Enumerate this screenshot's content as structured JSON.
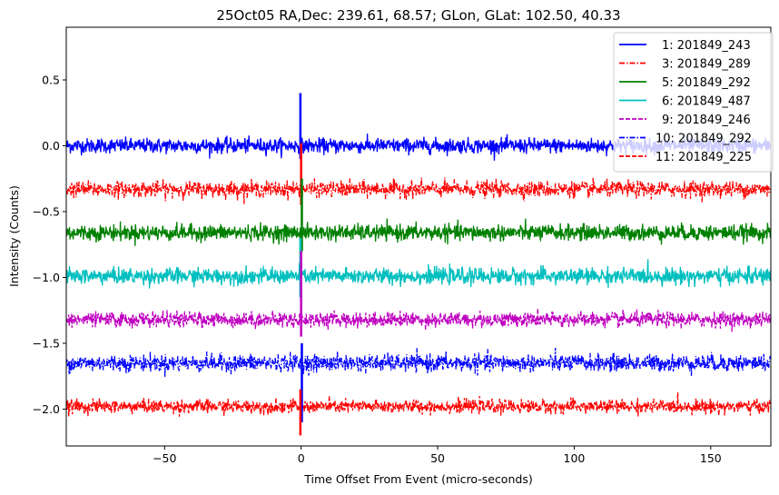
{
  "chart_data": {
    "type": "line",
    "title": "25Oct05 RA,Dec:  239.61,  68.57; GLon, GLat:  102.50,  40.33",
    "xlabel": "Time Offset From Event (micro-seconds)",
    "ylabel": "Intensity (Counts)",
    "xlim": [
      -86,
      172
    ],
    "ylim": [
      -2.28,
      0.9
    ],
    "xticks": [
      -50,
      0,
      50,
      100,
      150
    ],
    "xtick_labels": [
      "−50",
      "0",
      "50",
      "100",
      "150"
    ],
    "yticks": [
      0.5,
      0.0,
      -0.5,
      -1.0,
      -1.5,
      -2.0
    ],
    "ytick_labels": [
      "0.5",
      "0.0",
      "−0.5",
      "−1.0",
      "−1.5",
      "−2.0"
    ],
    "grid": false,
    "legend_position": "top-right",
    "series": [
      {
        "name": "1: 201849_243",
        "color": "#0000ff",
        "linestyle": "solid",
        "offset": 0.0,
        "noise_std": 0.028,
        "event_spike": [
          -0.1,
          0.4
        ]
      },
      {
        "name": "3: 201849_289",
        "color": "#ff0000",
        "linestyle": "dashdot",
        "offset": -0.33,
        "noise_std": 0.03,
        "event_spike": [
          -0.45,
          0.02
        ]
      },
      {
        "name": "5: 201849_292",
        "color": "#008000",
        "linestyle": "solid",
        "offset": -0.66,
        "noise_std": 0.03,
        "event_spike": [
          -0.8,
          -0.25
        ]
      },
      {
        "name": "6: 201849_487",
        "color": "#00bfbf",
        "linestyle": "solid",
        "offset": -0.99,
        "noise_std": 0.03,
        "event_spike": [
          -1.15,
          -0.7
        ]
      },
      {
        "name": "9: 201849_246",
        "color": "#bf00bf",
        "linestyle": "dashed",
        "offset": -1.32,
        "noise_std": 0.028,
        "event_spike": [
          -1.45,
          -0.8
        ]
      },
      {
        "name": "10: 201849_292",
        "color": "#0000ff",
        "linestyle": "dashdot",
        "offset": -1.65,
        "noise_std": 0.032,
        "event_spike": [
          -2.1,
          -1.5
        ]
      },
      {
        "name": "11: 201849_225",
        "color": "#ff0000",
        "linestyle": "dashed",
        "offset": -1.98,
        "noise_std": 0.025,
        "event_spike": [
          -2.2,
          -1.85
        ]
      }
    ]
  }
}
